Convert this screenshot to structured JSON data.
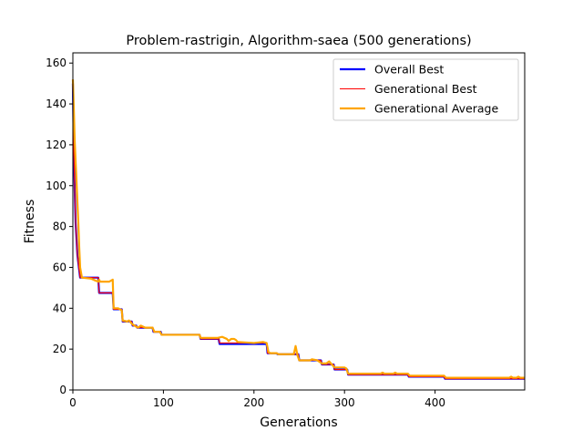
{
  "chart_data": {
    "type": "line",
    "title": "Problem-rastrigin, Algorithm-saea (500 generations)",
    "xlabel": "Generations",
    "ylabel": "Fitness",
    "xlim": [
      0,
      499
    ],
    "ylim": [
      0,
      165
    ],
    "xticks": [
      0,
      100,
      200,
      300,
      400
    ],
    "yticks": [
      0,
      20,
      40,
      60,
      80,
      100,
      120,
      140,
      160
    ],
    "grid": false,
    "legend_position": "top-right",
    "series": [
      {
        "name": "Overall Best",
        "color": "#0000ff",
        "style": "step",
        "points": [
          [
            0,
            150
          ],
          [
            1,
            118
          ],
          [
            2,
            98
          ],
          [
            3,
            82
          ],
          [
            5,
            66
          ],
          [
            8,
            55
          ],
          [
            28,
            55
          ],
          [
            29,
            47.5
          ],
          [
            44,
            47.5
          ],
          [
            45,
            39.5
          ],
          [
            54,
            39.5
          ],
          [
            55,
            33.5
          ],
          [
            65,
            33.5
          ],
          [
            66,
            31.5
          ],
          [
            70,
            31.5
          ],
          [
            71,
            30.5
          ],
          [
            88,
            30.5
          ],
          [
            89,
            28.5
          ],
          [
            97,
            28.5
          ],
          [
            98,
            27
          ],
          [
            140,
            27
          ],
          [
            141,
            25
          ],
          [
            161,
            25
          ],
          [
            162,
            22.5
          ],
          [
            214,
            22.5
          ],
          [
            215,
            18
          ],
          [
            225,
            18
          ],
          [
            226,
            17.5
          ],
          [
            249,
            17.5
          ],
          [
            250,
            14.5
          ],
          [
            274,
            14.5
          ],
          [
            275,
            12.5
          ],
          [
            288,
            12.5
          ],
          [
            289,
            10
          ],
          [
            303,
            10
          ],
          [
            304,
            7.5
          ],
          [
            370,
            7.5
          ],
          [
            371,
            6.5
          ],
          [
            410,
            6.5
          ],
          [
            411,
            5.5
          ],
          [
            499,
            5.5
          ]
        ]
      },
      {
        "name": "Generational Best",
        "color": "#ff0000",
        "style": "line",
        "points": [
          [
            0,
            150
          ],
          [
            1,
            118
          ],
          [
            2,
            98
          ],
          [
            3,
            82
          ],
          [
            5,
            66
          ],
          [
            8,
            55
          ],
          [
            28,
            55
          ],
          [
            29,
            47.5
          ],
          [
            44,
            47.5
          ],
          [
            45,
            39.5
          ],
          [
            54,
            39.5
          ],
          [
            55,
            33.5
          ],
          [
            65,
            33.5
          ],
          [
            66,
            31.5
          ],
          [
            70,
            31.5
          ],
          [
            71,
            30.5
          ],
          [
            88,
            30.5
          ],
          [
            89,
            28.5
          ],
          [
            97,
            28.5
          ],
          [
            98,
            27
          ],
          [
            140,
            27
          ],
          [
            141,
            25
          ],
          [
            161,
            25
          ],
          [
            162,
            23
          ],
          [
            214,
            23
          ],
          [
            215,
            18
          ],
          [
            225,
            18
          ],
          [
            226,
            17.5
          ],
          [
            249,
            17.5
          ],
          [
            250,
            14.5
          ],
          [
            274,
            14.5
          ],
          [
            275,
            12.5
          ],
          [
            288,
            12.5
          ],
          [
            289,
            10
          ],
          [
            303,
            10
          ],
          [
            304,
            7.5
          ],
          [
            370,
            7.5
          ],
          [
            371,
            6.5
          ],
          [
            410,
            6.5
          ],
          [
            411,
            5.5
          ],
          [
            499,
            5.5
          ]
        ]
      },
      {
        "name": "Generational Average",
        "color": "#ffa500",
        "style": "line",
        "points": [
          [
            0,
            152
          ],
          [
            1,
            138
          ],
          [
            2,
            122
          ],
          [
            3,
            112
          ],
          [
            4,
            102
          ],
          [
            5,
            92
          ],
          [
            6,
            82
          ],
          [
            7,
            70
          ],
          [
            8,
            60
          ],
          [
            10,
            55
          ],
          [
            20,
            54.5
          ],
          [
            25,
            53.5
          ],
          [
            28,
            53
          ],
          [
            29,
            54
          ],
          [
            30,
            53
          ],
          [
            35,
            53
          ],
          [
            40,
            53
          ],
          [
            44,
            54
          ],
          [
            45,
            40
          ],
          [
            50,
            40
          ],
          [
            54,
            39
          ],
          [
            55,
            34
          ],
          [
            60,
            33.5
          ],
          [
            62,
            34
          ],
          [
            65,
            32.5
          ],
          [
            68,
            31.5
          ],
          [
            72,
            30.5
          ],
          [
            75,
            31.5
          ],
          [
            80,
            30.5
          ],
          [
            88,
            30.5
          ],
          [
            90,
            28.5
          ],
          [
            96,
            28.5
          ],
          [
            98,
            27
          ],
          [
            120,
            27
          ],
          [
            140,
            27
          ],
          [
            141,
            25.5
          ],
          [
            160,
            25.5
          ],
          [
            165,
            26
          ],
          [
            170,
            25
          ],
          [
            172,
            24
          ],
          [
            175,
            25
          ],
          [
            178,
            25
          ],
          [
            180,
            24.5
          ],
          [
            182,
            23.5
          ],
          [
            200,
            23
          ],
          [
            210,
            23.5
          ],
          [
            214,
            23
          ],
          [
            216,
            18.5
          ],
          [
            218,
            18
          ],
          [
            225,
            18
          ],
          [
            227,
            17.5
          ],
          [
            235,
            17.5
          ],
          [
            240,
            17.5
          ],
          [
            244,
            17.5
          ],
          [
            246,
            21.5
          ],
          [
            248,
            17
          ],
          [
            250,
            14.5
          ],
          [
            262,
            14.5
          ],
          [
            264,
            15
          ],
          [
            270,
            14.5
          ],
          [
            275,
            13
          ],
          [
            280,
            13
          ],
          [
            283,
            14
          ],
          [
            286,
            12.5
          ],
          [
            289,
            11
          ],
          [
            300,
            11
          ],
          [
            302,
            10.5
          ],
          [
            304,
            8
          ],
          [
            310,
            8
          ],
          [
            340,
            8
          ],
          [
            342,
            8.5
          ],
          [
            344,
            8
          ],
          [
            354,
            8
          ],
          [
            356,
            8.5
          ],
          [
            358,
            8
          ],
          [
            370,
            8
          ],
          [
            372,
            7
          ],
          [
            380,
            7
          ],
          [
            390,
            7
          ],
          [
            400,
            7
          ],
          [
            410,
            7
          ],
          [
            412,
            6
          ],
          [
            450,
            6
          ],
          [
            482,
            6
          ],
          [
            484,
            6.5
          ],
          [
            486,
            6
          ],
          [
            490,
            6
          ],
          [
            492,
            6.5
          ],
          [
            494,
            6
          ],
          [
            499,
            6
          ]
        ]
      }
    ]
  }
}
